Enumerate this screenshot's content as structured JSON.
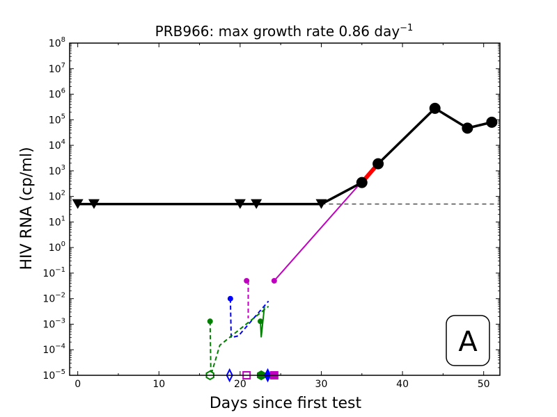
{
  "chart_data": {
    "type": "line",
    "title": "PRB966: max growth rate 0.86 day",
    "title_sup": "−1",
    "xlabel": "Days since first test",
    "ylabel": "HIV RNA (cp/ml)",
    "xlim": [
      -1,
      52
    ],
    "ylim_log10": [
      -5,
      8
    ],
    "xticks": [
      0,
      10,
      20,
      30,
      40,
      50
    ],
    "xtick_labels": [
      "0",
      "10",
      "20",
      "30",
      "40",
      "50"
    ],
    "yticks_log10": [
      -5,
      -4,
      -3,
      -2,
      -1,
      0,
      1,
      2,
      3,
      4,
      5,
      6,
      7,
      8
    ],
    "ytick_base": "10",
    "ytick_exponents": [
      "−5",
      "−4",
      "−3",
      "−2",
      "−1",
      "0",
      "1",
      "2",
      "3",
      "4",
      "5",
      "6",
      "7",
      "8"
    ],
    "panel_label": "A",
    "detection_limit": 50,
    "colors": {
      "measured": "#000000",
      "max_growth": "#ff0000",
      "magenta": "#bf00bf",
      "blue": "#0000ff",
      "green": "#007f00",
      "threshold": "#000000"
    },
    "series": [
      {
        "name": "undetectable tests",
        "marker": "triangle-down",
        "color": "#000000",
        "x": [
          0,
          2,
          20,
          22,
          30
        ],
        "y": [
          50,
          50,
          50,
          50,
          50
        ]
      },
      {
        "name": "measured viral load",
        "marker": "circle",
        "color": "#000000",
        "x": [
          35,
          37,
          44,
          48,
          51
        ],
        "y": [
          350,
          1900,
          280000,
          47000,
          80000
        ]
      },
      {
        "name": "max growth segment",
        "color": "#ff0000",
        "x": [
          35,
          37
        ],
        "y": [
          350,
          1900
        ]
      },
      {
        "name": "magenta model",
        "color": "#bf00bf",
        "x": [
          24.2,
          34.7
        ],
        "y": [
          0.05,
          300
        ]
      },
      {
        "name": "magenta dashed",
        "color": "#bf00bf",
        "style": "dashed",
        "x": [
          21,
          21
        ],
        "y": [
          0.05,
          0.0017
        ]
      },
      {
        "name": "blue dashed",
        "color": "#0000ff",
        "style": "dashed",
        "x": [
          18.8,
          18.9,
          19.8,
          23.5
        ],
        "y": [
          0.01,
          0.0003,
          0.00035,
          0.008
        ]
      },
      {
        "name": "green dashed",
        "color": "#007f00",
        "style": "dashed",
        "x": [
          16.3,
          16.4,
          17.5,
          23.5
        ],
        "y": [
          0.0013,
          1e-05,
          0.00015,
          0.005
        ]
      },
      {
        "name": "green solid",
        "color": "#007f00",
        "x": [
          22.5,
          22.6,
          23.0
        ],
        "y": [
          0.0013,
          0.00032,
          0.005
        ]
      }
    ],
    "initial_points": [
      {
        "name": "green start",
        "color": "#007f00",
        "x": 16.3,
        "y": 0.0013
      },
      {
        "name": "blue start",
        "color": "#0000ff",
        "x": 18.8,
        "y": 0.01
      },
      {
        "name": "magenta start 1",
        "color": "#bf00bf",
        "x": 20.8,
        "y": 0.05
      },
      {
        "name": "magenta start 2",
        "color": "#bf00bf",
        "x": 24.2,
        "y": 0.05
      },
      {
        "name": "green start 2",
        "color": "#007f00",
        "x": 22.5,
        "y": 0.0013
      }
    ],
    "bottom_markers": [
      {
        "name": "green hexagon open",
        "shape": "hexagon",
        "filled": false,
        "color": "#007f00",
        "x": 16.3
      },
      {
        "name": "blue diamond",
        "shape": "diamond",
        "filled": false,
        "color": "#0000ff",
        "x": 18.7
      },
      {
        "name": "magenta square open",
        "shape": "square",
        "filled": false,
        "color": "#bf00bf",
        "x": 20.8
      },
      {
        "name": "green hexagon filled",
        "shape": "hexagon",
        "filled": true,
        "color": "#007f00",
        "x": 22.6
      },
      {
        "name": "blue diamond filled",
        "shape": "diamond",
        "filled": true,
        "color": "#0000ff",
        "x": 23.4
      },
      {
        "name": "magenta square filled",
        "shape": "square",
        "filled": true,
        "color": "#bf00bf",
        "x": 24.2
      }
    ]
  }
}
